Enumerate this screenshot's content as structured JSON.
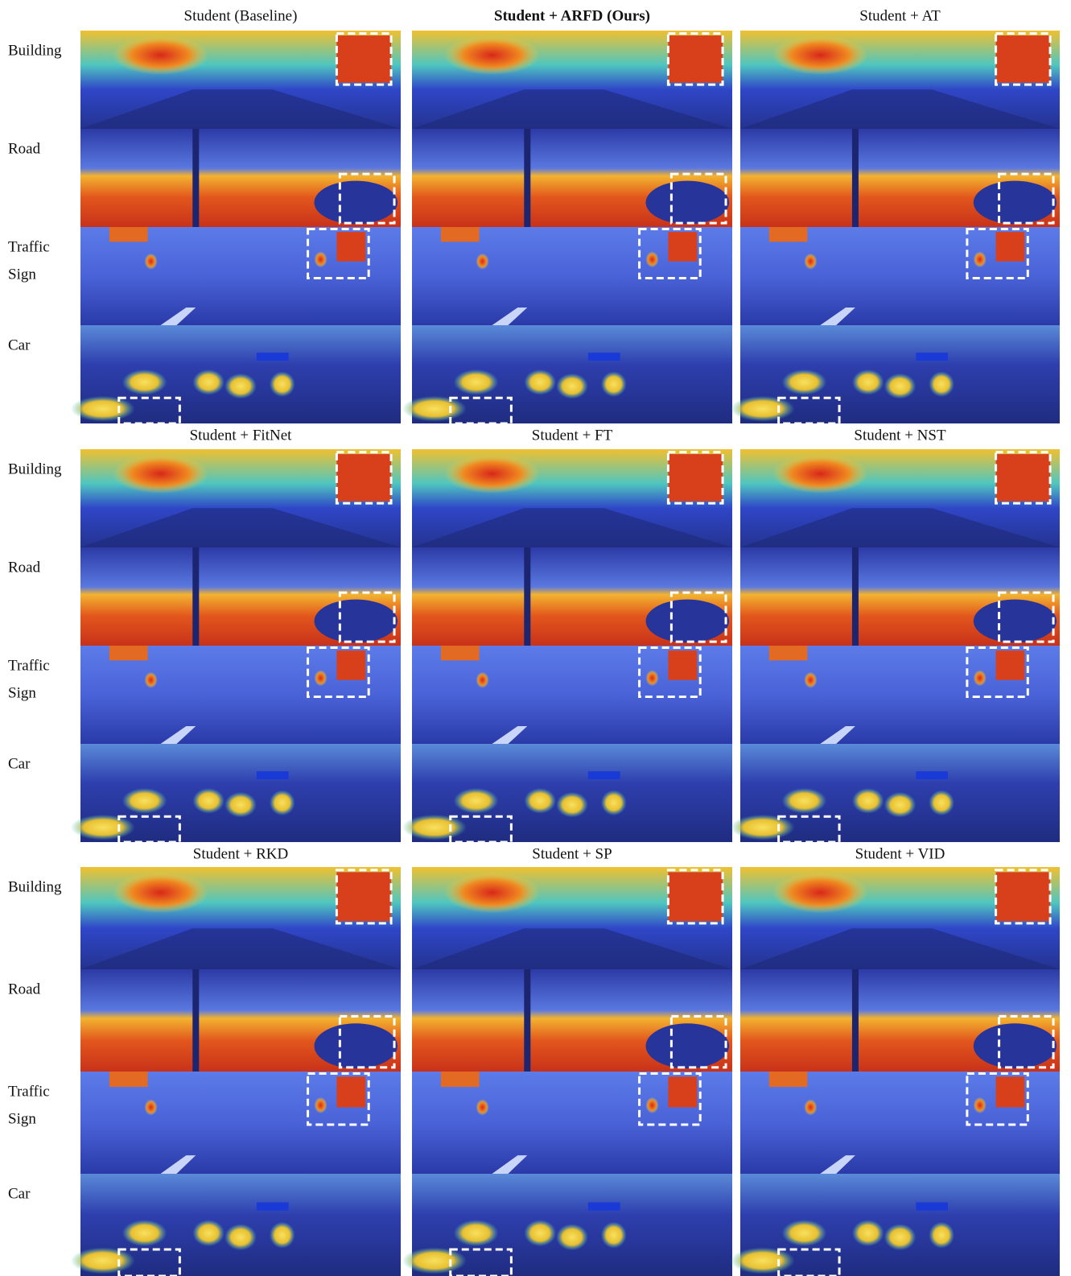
{
  "blocks": [
    {
      "columns": [
        "Student (Baseline)",
        "Student + ARFD (Ours)",
        "Student + AT"
      ]
    },
    {
      "columns": [
        "Student + FitNet",
        "Student + FT",
        "Student + NST"
      ]
    },
    {
      "columns": [
        "Student + RKD",
        "Student + SP",
        "Student + VID"
      ]
    }
  ],
  "row_labels": [
    [
      "Building"
    ],
    [
      "Road"
    ],
    [
      "Traffic",
      "Sign"
    ],
    [
      "Car"
    ]
  ]
}
